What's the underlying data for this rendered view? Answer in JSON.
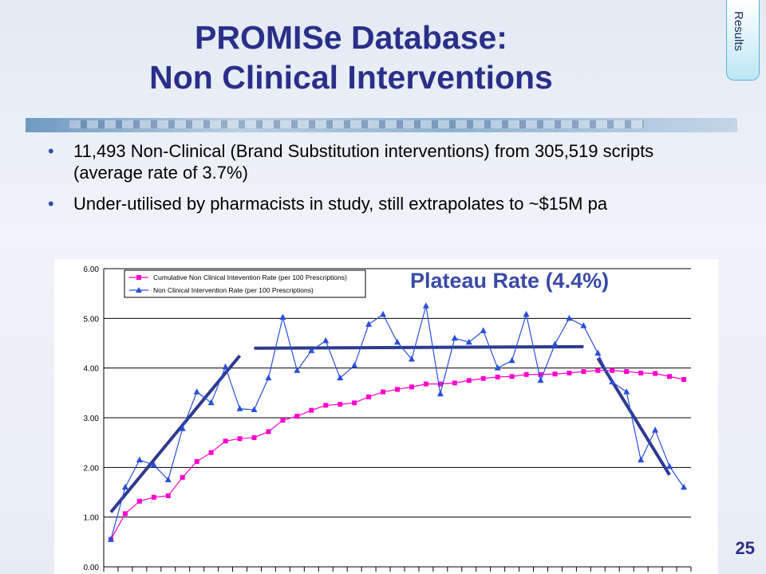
{
  "tab": {
    "label": "Results"
  },
  "title": {
    "line1": "PROMISe Database:",
    "line2": "Non Clinical Interventions"
  },
  "bullets": [
    "11,493 Non-Clinical (Brand Substitution interventions) from 305,519 scripts (average rate of 3.7%)",
    "Under-utilised by pharmacists in study, still extrapolates to ~$15M pa"
  ],
  "page_number": "25",
  "chart_data": {
    "type": "line",
    "annotation": "Plateau Rate (4.4%)",
    "ylim": [
      0,
      6
    ],
    "ytick_labels": [
      "0.00",
      "1.00",
      "2.00",
      "3.00",
      "4.00",
      "5.00",
      "6.00"
    ],
    "grid": true,
    "legend_position": "top-left",
    "x": [
      1,
      2,
      3,
      4,
      5,
      6,
      7,
      8,
      9,
      10,
      11,
      12,
      13,
      14,
      15,
      16,
      17,
      18,
      19,
      20,
      21,
      22,
      23,
      24,
      25,
      26,
      27,
      28,
      29,
      30,
      31,
      32,
      33,
      34,
      35,
      36,
      37,
      38,
      39,
      40,
      41
    ],
    "series": [
      {
        "name": "Cumulative Non Clinical Intevention Rate (per 100 Prescriptions)",
        "color": "#ff00cc",
        "marker": "square",
        "values": [
          0.55,
          1.07,
          1.32,
          1.4,
          1.43,
          1.8,
          2.12,
          2.3,
          2.53,
          2.58,
          2.6,
          2.72,
          2.95,
          3.03,
          3.15,
          3.25,
          3.27,
          3.3,
          3.42,
          3.52,
          3.57,
          3.62,
          3.68,
          3.68,
          3.7,
          3.75,
          3.79,
          3.82,
          3.83,
          3.87,
          3.87,
          3.88,
          3.9,
          3.93,
          3.95,
          3.95,
          3.93,
          3.9,
          3.89,
          3.83,
          3.77
        ]
      },
      {
        "name": "Non Clinical Intervention Rate (per 100 Prescriptions)",
        "color": "#2a4fd8",
        "marker": "triangle",
        "values": [
          0.55,
          1.6,
          2.15,
          2.05,
          1.75,
          2.78,
          3.52,
          3.3,
          4.02,
          3.18,
          3.16,
          3.8,
          5.02,
          3.95,
          4.35,
          4.55,
          3.8,
          4.05,
          4.88,
          5.08,
          4.52,
          4.18,
          5.25,
          3.48,
          4.6,
          4.52,
          4.75,
          4.0,
          4.15,
          5.08,
          3.75,
          4.48,
          5.0,
          4.85,
          4.3,
          3.72,
          3.52,
          2.15,
          2.75,
          2.02,
          1.6
        ]
      }
    ],
    "trend_lines": [
      {
        "from": [
          1,
          1.1
        ],
        "to": [
          10,
          4.25
        ]
      },
      {
        "from": [
          11,
          4.4
        ],
        "to": [
          34,
          4.43
        ]
      },
      {
        "from": [
          35,
          4.2
        ],
        "to": [
          40,
          1.85
        ]
      }
    ],
    "trend_color": "#2f3a8f"
  }
}
